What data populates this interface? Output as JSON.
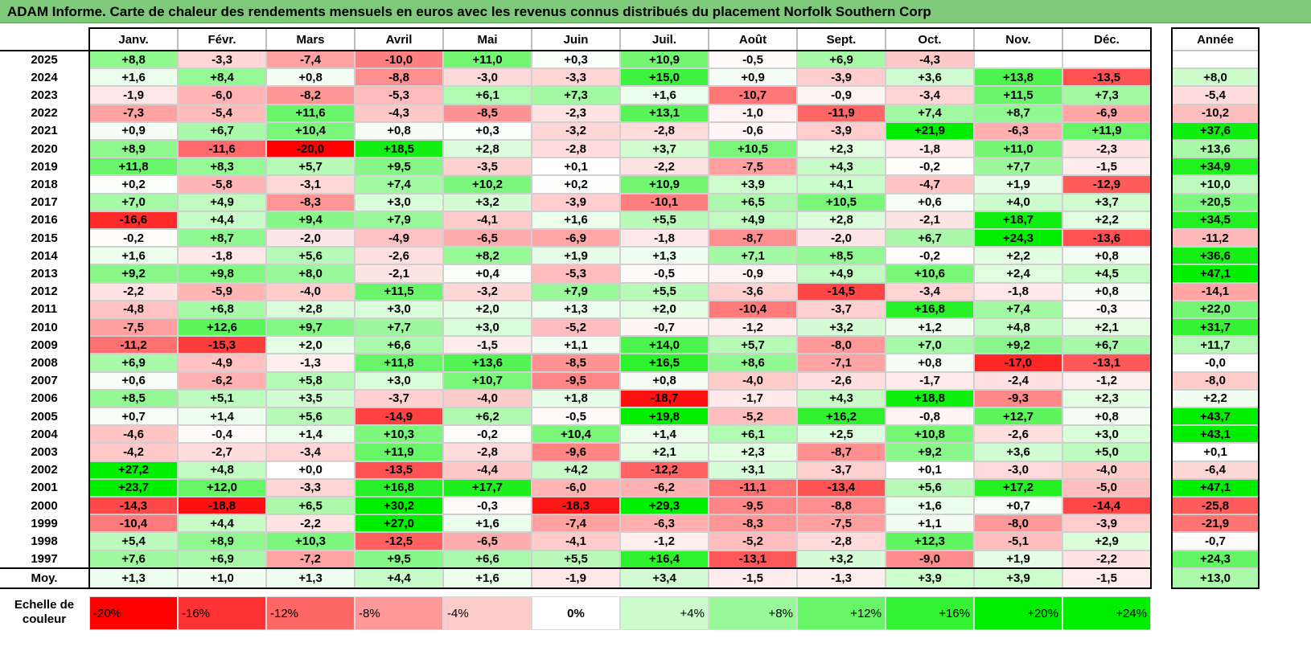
{
  "title": "ADAM Informe. Carte de chaleur des rendements mensuels en euros avec les revenus connus distribués du placement Norfolk Southern Corp",
  "colors": {
    "negative_max": "#ff0000",
    "neutral": "#ffffff",
    "positive_max": "#00ee00",
    "header": "#7fc97a"
  },
  "chart_data": {
    "type": "heatmap",
    "title": "ADAM Informe. Carte de chaleur des rendements mensuels en euros avec les revenus connus distribués du placement Norfolk Southern Corp",
    "columns": [
      "Janv.",
      "Févr.",
      "Mars",
      "Avril",
      "Mai",
      "Juin",
      "Juil.",
      "Août",
      "Sept.",
      "Oct.",
      "Nov.",
      "Déc."
    ],
    "year_column_label": "Année",
    "average_label": "Moy.",
    "rows": [
      {
        "year": "2025",
        "values": [
          "+8,8",
          "-3,3",
          "-7,4",
          "-10,0",
          "+11,0",
          "+0,3",
          "+10,9",
          "-0,5",
          "+6,9",
          "-4,3",
          "",
          ""
        ],
        "annual": ""
      },
      {
        "year": "2024",
        "values": [
          "+1,6",
          "+8,4",
          "+0,8",
          "-8,8",
          "-3,0",
          "-3,3",
          "+15,0",
          "+0,9",
          "-3,9",
          "+3,6",
          "+13,8",
          "-13,5"
        ],
        "annual": "+8,0"
      },
      {
        "year": "2023",
        "values": [
          "-1,9",
          "-6,0",
          "-8,2",
          "-5,3",
          "+6,1",
          "+7,3",
          "+1,6",
          "-10,7",
          "-0,9",
          "-3,4",
          "+11,5",
          "+7,3"
        ],
        "annual": "-5,4"
      },
      {
        "year": "2022",
        "values": [
          "-7,3",
          "-5,4",
          "+11,6",
          "-4,3",
          "-8,5",
          "-2,3",
          "+13,1",
          "-1,0",
          "-11,9",
          "+7,4",
          "+8,7",
          "-6,9"
        ],
        "annual": "-10,2"
      },
      {
        "year": "2021",
        "values": [
          "+0,9",
          "+6,7",
          "+10,4",
          "+0,8",
          "+0,3",
          "-3,2",
          "-2,8",
          "-0,6",
          "-3,9",
          "+21,9",
          "-6,3",
          "+11,9"
        ],
        "annual": "+37,6"
      },
      {
        "year": "2020",
        "values": [
          "+8,9",
          "-11,6",
          "-20,0",
          "+18,5",
          "+2,8",
          "-2,8",
          "+3,7",
          "+10,5",
          "+2,3",
          "-1,8",
          "+11,0",
          "-2,3"
        ],
        "annual": "+13,6"
      },
      {
        "year": "2019",
        "values": [
          "+11,8",
          "+8,3",
          "+5,7",
          "+9,5",
          "-3,5",
          "+0,1",
          "-2,2",
          "-7,5",
          "+4,3",
          "-0,2",
          "+7,7",
          "-1,5"
        ],
        "annual": "+34,9"
      },
      {
        "year": "2018",
        "values": [
          "+0,2",
          "-5,8",
          "-3,1",
          "+7,4",
          "+10,2",
          "+0,2",
          "+10,9",
          "+3,9",
          "+4,1",
          "-4,7",
          "+1,9",
          "-12,9"
        ],
        "annual": "+10,0"
      },
      {
        "year": "2017",
        "values": [
          "+7,0",
          "+4,9",
          "-8,3",
          "+3,0",
          "+3,2",
          "-3,9",
          "-10,1",
          "+6,5",
          "+10,5",
          "+0,6",
          "+4,0",
          "+3,7"
        ],
        "annual": "+20,5"
      },
      {
        "year": "2016",
        "values": [
          "-16,6",
          "+4,4",
          "+9,4",
          "+7,9",
          "-4,1",
          "+1,6",
          "+5,5",
          "+4,9",
          "+2,8",
          "-2,1",
          "+18,7",
          "+2,2"
        ],
        "annual": "+34,5"
      },
      {
        "year": "2015",
        "values": [
          "-0,2",
          "+8,7",
          "-2,0",
          "-4,9",
          "-6,5",
          "-6,9",
          "-1,8",
          "-8,7",
          "-2,0",
          "+6,7",
          "+24,3",
          "-13,6"
        ],
        "annual": "-11,2"
      },
      {
        "year": "2014",
        "values": [
          "+1,6",
          "-1,8",
          "+5,6",
          "-2,6",
          "+8,2",
          "+1,9",
          "+1,3",
          "+7,1",
          "+8,5",
          "-0,2",
          "+2,2",
          "+0,8"
        ],
        "annual": "+36,6"
      },
      {
        "year": "2013",
        "values": [
          "+9,2",
          "+9,8",
          "+8,0",
          "-2,1",
          "+0,4",
          "-5,3",
          "-0,5",
          "-0,9",
          "+4,9",
          "+10,6",
          "+2,4",
          "+4,5"
        ],
        "annual": "+47,1"
      },
      {
        "year": "2012",
        "values": [
          "-2,2",
          "-5,9",
          "-4,0",
          "+11,5",
          "-3,2",
          "+7,9",
          "+5,5",
          "-3,6",
          "-14,5",
          "-3,4",
          "-1,8",
          "+0,8"
        ],
        "annual": "-14,1"
      },
      {
        "year": "2011",
        "values": [
          "-4,8",
          "+6,8",
          "+2,8",
          "+3,0",
          "+2,0",
          "+1,3",
          "+2,0",
          "-10,4",
          "-3,7",
          "+16,8",
          "+7,4",
          "-0,3"
        ],
        "annual": "+22,0"
      },
      {
        "year": "2010",
        "values": [
          "-7,5",
          "+12,6",
          "+9,7",
          "+7,7",
          "+3,0",
          "-5,2",
          "-0,7",
          "-1,2",
          "+3,2",
          "+1,2",
          "+4,8",
          "+2,1"
        ],
        "annual": "+31,7"
      },
      {
        "year": "2009",
        "values": [
          "-11,2",
          "-15,3",
          "+2,0",
          "+6,6",
          "-1,5",
          "+1,1",
          "+14,0",
          "+5,7",
          "-8,0",
          "+7,0",
          "+9,2",
          "+6,7"
        ],
        "annual": "+11,7"
      },
      {
        "year": "2008",
        "values": [
          "+6,9",
          "-4,9",
          "-1,3",
          "+11,8",
          "+13,6",
          "-8,5",
          "+16,5",
          "+8,6",
          "-7,1",
          "+0,8",
          "-17,0",
          "-13,1"
        ],
        "annual": "-0,0"
      },
      {
        "year": "2007",
        "values": [
          "+0,6",
          "-6,2",
          "+5,8",
          "+3,0",
          "+10,7",
          "-9,5",
          "+0,8",
          "-4,0",
          "-2,6",
          "-1,7",
          "-2,4",
          "-1,2"
        ],
        "annual": "-8,0"
      },
      {
        "year": "2006",
        "values": [
          "+8,5",
          "+5,1",
          "+3,5",
          "-3,7",
          "-4,0",
          "+1,8",
          "-18,7",
          "-1,7",
          "+4,3",
          "+18,8",
          "-9,3",
          "+2,3"
        ],
        "annual": "+2,2"
      },
      {
        "year": "2005",
        "values": [
          "+0,7",
          "+1,4",
          "+5,6",
          "-14,9",
          "+6,2",
          "-0,5",
          "+19,8",
          "-5,2",
          "+16,2",
          "-0,8",
          "+12,7",
          "+0,8"
        ],
        "annual": "+43,7"
      },
      {
        "year": "2004",
        "values": [
          "-4,6",
          "-0,4",
          "+1,4",
          "+10,3",
          "-0,2",
          "+10,4",
          "+1,4",
          "+6,1",
          "+2,5",
          "+10,8",
          "-2,6",
          "+3,0"
        ],
        "annual": "+43,1"
      },
      {
        "year": "2003",
        "values": [
          "-4,2",
          "-2,7",
          "-3,4",
          "+11,9",
          "-2,8",
          "-9,6",
          "+2,1",
          "+2,3",
          "-8,7",
          "+9,2",
          "+3,6",
          "+5,0"
        ],
        "annual": "+0,1"
      },
      {
        "year": "2002",
        "values": [
          "+27,2",
          "+4,8",
          "+0,0",
          "-13,5",
          "-4,4",
          "+4,2",
          "-12,2",
          "+3,1",
          "-3,7",
          "+0,1",
          "-3,0",
          "-4,0"
        ],
        "annual": "-6,4"
      },
      {
        "year": "2001",
        "values": [
          "+23,7",
          "+12,0",
          "-3,3",
          "+16,8",
          "+17,7",
          "-6,0",
          "-6,2",
          "-11,1",
          "-13,4",
          "+5,6",
          "+17,2",
          "-5,0"
        ],
        "annual": "+47,1"
      },
      {
        "year": "2000",
        "values": [
          "-14,3",
          "-18,8",
          "+6,5",
          "+30,2",
          "-0,3",
          "-18,3",
          "+29,3",
          "-9,5",
          "-8,8",
          "+1,6",
          "+0,7",
          "-14,4"
        ],
        "annual": "-25,8"
      },
      {
        "year": "1999",
        "values": [
          "-10,4",
          "+4,4",
          "-2,2",
          "+27,0",
          "+1,6",
          "-7,4",
          "-6,3",
          "-8,3",
          "-7,5",
          "+1,1",
          "-8,0",
          "-3,9"
        ],
        "annual": "-21,9"
      },
      {
        "year": "1998",
        "values": [
          "+5,4",
          "+8,9",
          "+10,3",
          "-12,5",
          "-6,5",
          "-4,1",
          "-1,2",
          "-5,2",
          "-2,8",
          "+12,3",
          "-5,1",
          "+2,9"
        ],
        "annual": "-0,7"
      },
      {
        "year": "1997",
        "values": [
          "+7,6",
          "+6,9",
          "-7,2",
          "+9,5",
          "+6,6",
          "+5,5",
          "+16,4",
          "-13,1",
          "+3,2",
          "-9,0",
          "+1,9",
          "-2,2"
        ],
        "annual": "+24,3"
      }
    ],
    "average": {
      "values": [
        "+1,3",
        "+1,0",
        "+1,3",
        "+4,4",
        "+1,6",
        "-1,9",
        "+3,4",
        "-1,5",
        "-1,3",
        "+3,9",
        "+3,9",
        "-1,5"
      ],
      "annual": "+13,0"
    },
    "scale": {
      "label_line1": "Echelle de",
      "label_line2": "couleur",
      "steps": [
        {
          "label": "-20%",
          "value": -20,
          "align": "left"
        },
        {
          "label": "-16%",
          "value": -16,
          "align": "left"
        },
        {
          "label": "-12%",
          "value": -12,
          "align": "left"
        },
        {
          "label": "-8%",
          "value": -8,
          "align": "left"
        },
        {
          "label": "-4%",
          "value": -4,
          "align": "left"
        },
        {
          "label": "0%",
          "value": 0,
          "align": "center"
        },
        {
          "label": "+4%",
          "value": 4,
          "align": "right"
        },
        {
          "label": "+8%",
          "value": 8,
          "align": "right"
        },
        {
          "label": "+12%",
          "value": 12,
          "align": "right"
        },
        {
          "label": "+16%",
          "value": 16,
          "align": "right"
        },
        {
          "label": "+20%",
          "value": 20,
          "align": "right"
        },
        {
          "label": "+24%",
          "value": 24,
          "align": "right"
        }
      ]
    }
  }
}
